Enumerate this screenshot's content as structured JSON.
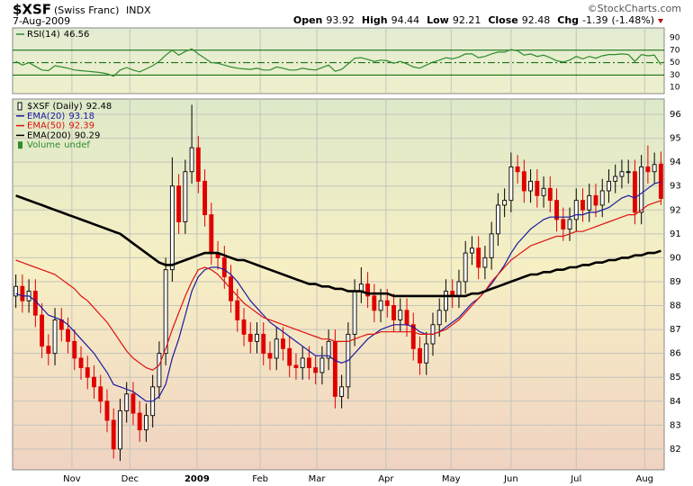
{
  "header": {
    "symbol": "$XSF",
    "name": "(Swiss Franc)",
    "exchange": "INDX",
    "date": "7-Aug-2009",
    "quote": [
      {
        "label": "Open",
        "value": 93.92
      },
      {
        "label": "High",
        "value": 94.44
      },
      {
        "label": "Low",
        "value": 92.21
      },
      {
        "label": "Close",
        "value": 92.48
      }
    ],
    "change_label": "Chg",
    "change": -1.39,
    "change_pct": "(-1.48%)",
    "credit": "©StockCharts.com"
  },
  "chart_data": [
    {
      "type": "line",
      "name": "RSI(14)",
      "last": 46.56,
      "color": "#2e8b2e",
      "level_color": "#006400",
      "ylim": [
        0,
        106
      ],
      "yticks": [
        90,
        70,
        50,
        30,
        10
      ],
      "levels": [
        70,
        50,
        30
      ],
      "values": [
        52,
        46,
        50,
        44,
        38,
        37,
        45,
        43,
        41,
        38,
        37,
        36,
        35,
        34,
        32,
        28,
        38,
        42,
        38,
        35,
        40,
        45,
        52,
        62,
        70,
        62,
        68,
        72,
        64,
        57,
        50,
        49,
        46,
        43,
        41,
        40,
        39,
        41,
        38,
        38,
        43,
        41,
        38,
        38,
        41,
        39,
        38,
        42,
        46,
        36,
        39,
        48,
        57,
        58,
        55,
        52,
        54,
        53,
        49,
        52,
        48,
        43,
        41,
        46,
        51,
        54,
        58,
        56,
        59,
        64,
        64,
        58,
        60,
        64,
        67,
        67,
        71,
        69,
        62,
        64,
        60,
        62,
        58,
        53,
        51,
        54,
        60,
        56,
        60,
        57,
        61,
        63,
        63,
        64,
        63,
        52,
        63,
        61,
        62,
        46.56
      ]
    },
    {
      "type": "candlestick",
      "name": "$XSF (Daily)",
      "last": 92.48,
      "up_color": "#000000",
      "down_color": "#e00000",
      "grid": true,
      "ylim": [
        81.13,
        96.64
      ],
      "yticks": [
        82,
        83,
        84,
        85,
        86,
        87,
        88,
        89,
        90,
        91,
        92,
        93,
        94,
        95,
        96
      ],
      "xticks": [
        {
          "value": 8.6,
          "label": "Nov"
        },
        {
          "value": 17.5,
          "label": "Dec"
        },
        {
          "value": 27.8,
          "label": "2009"
        },
        {
          "value": 37.5,
          "label": "Feb"
        },
        {
          "value": 46.2,
          "label": "Mar"
        },
        {
          "value": 56.8,
          "label": "Apr"
        },
        {
          "value": 66.8,
          "label": "May"
        },
        {
          "value": 76,
          "label": "Jun"
        },
        {
          "value": 86,
          "label": "Jul"
        },
        {
          "value": 96.5,
          "label": "Aug"
        }
      ],
      "categories": [
        null,
        null,
        null,
        null,
        null,
        null,
        null,
        null,
        null,
        null,
        null,
        null,
        null,
        null,
        null,
        null,
        null,
        null,
        null,
        null,
        null,
        null,
        null,
        null,
        null,
        null,
        null,
        null,
        null,
        null,
        null,
        null,
        null,
        null,
        null,
        null,
        null,
        null,
        null,
        null,
        null,
        null,
        null,
        null,
        null,
        null,
        null,
        null,
        null,
        null,
        null,
        null,
        null,
        null,
        null,
        null,
        null,
        null,
        null,
        null,
        null,
        null,
        null,
        null,
        null,
        null,
        null,
        null,
        null,
        null,
        null,
        null,
        null,
        null,
        null,
        null,
        null,
        null,
        null,
        null,
        null,
        null,
        null,
        null,
        null,
        null,
        null,
        null,
        null,
        null,
        null,
        null,
        null,
        null,
        null,
        null,
        null,
        null,
        null,
        null
      ],
      "ohlc": {
        "open": [
          88.4,
          88.8,
          88.2,
          88.6,
          87.6,
          86.3,
          86.0,
          87.4,
          87.0,
          86.5,
          85.8,
          85.4,
          85.0,
          84.6,
          84.0,
          83.2,
          82.0,
          83.6,
          84.3,
          83.5,
          82.8,
          83.4,
          84.6,
          86.0,
          89.5,
          93.0,
          91.5,
          93.6,
          94.6,
          93.2,
          91.8,
          90.2,
          90.0,
          89.2,
          88.2,
          87.4,
          86.8,
          86.5,
          86.8,
          86.0,
          85.8,
          86.6,
          86.2,
          85.5,
          85.4,
          85.8,
          85.4,
          85.2,
          85.8,
          86.5,
          84.2,
          84.6,
          86.8,
          88.6,
          88.9,
          88.4,
          87.8,
          88.2,
          88.0,
          87.4,
          87.8,
          87.2,
          86.2,
          85.6,
          86.4,
          87.2,
          87.8,
          88.6,
          88.4,
          89.0,
          90.2,
          90.4,
          89.6,
          90.0,
          91.0,
          92.2,
          92.4,
          93.8,
          93.6,
          92.8,
          93.2,
          92.6,
          92.9,
          92.4,
          91.6,
          91.2,
          91.6,
          92.4,
          92.0,
          92.6,
          92.2,
          92.8,
          93.2,
          93.4,
          93.6,
          93.6,
          91.9,
          93.8,
          93.6,
          93.92
        ],
        "high": [
          89.3,
          89.3,
          89.1,
          89.1,
          88.1,
          86.8,
          87.9,
          87.9,
          87.5,
          87.0,
          86.3,
          85.9,
          85.5,
          85.1,
          84.5,
          83.7,
          84.1,
          84.8,
          84.8,
          84.0,
          83.9,
          85.1,
          86.5,
          90.0,
          94.2,
          93.5,
          94.1,
          96.4,
          95.1,
          93.7,
          92.3,
          90.7,
          90.5,
          89.7,
          88.7,
          87.9,
          87.3,
          87.3,
          87.3,
          86.5,
          87.1,
          87.1,
          86.7,
          86.0,
          86.3,
          86.3,
          85.9,
          86.3,
          87.0,
          87.0,
          85.1,
          87.3,
          89.1,
          89.6,
          89.4,
          88.9,
          88.7,
          88.7,
          88.5,
          88.3,
          88.3,
          87.7,
          86.7,
          86.9,
          87.7,
          88.3,
          89.1,
          89.1,
          89.5,
          90.7,
          90.9,
          90.9,
          90.5,
          91.5,
          92.7,
          92.9,
          94.4,
          94.3,
          94.1,
          93.7,
          93.7,
          93.4,
          93.4,
          92.9,
          92.1,
          92.1,
          92.9,
          92.9,
          93.1,
          93.1,
          93.3,
          93.7,
          93.9,
          94.1,
          94.1,
          94.1,
          94.3,
          94.7,
          94.4,
          94.44
        ],
        "low": [
          87.9,
          87.7,
          87.7,
          87.1,
          85.8,
          85.5,
          85.5,
          86.5,
          86.0,
          85.3,
          84.9,
          84.5,
          84.1,
          83.5,
          82.7,
          81.6,
          81.5,
          83.1,
          83.0,
          82.3,
          82.3,
          82.9,
          84.1,
          85.5,
          89.0,
          91.0,
          91.0,
          93.1,
          92.7,
          91.3,
          89.7,
          89.5,
          88.7,
          87.7,
          86.9,
          86.3,
          86.0,
          86.0,
          85.5,
          85.3,
          85.3,
          85.7,
          85.0,
          84.9,
          84.9,
          84.9,
          84.7,
          84.7,
          85.3,
          83.7,
          83.7,
          84.1,
          86.3,
          88.1,
          87.9,
          87.3,
          87.3,
          87.5,
          86.9,
          86.9,
          86.7,
          85.7,
          85.1,
          85.1,
          85.9,
          86.7,
          87.3,
          87.9,
          87.9,
          88.5,
          89.7,
          89.1,
          89.1,
          89.5,
          90.5,
          91.7,
          91.9,
          93.1,
          92.3,
          92.3,
          92.1,
          92.1,
          91.9,
          91.1,
          90.7,
          90.7,
          91.1,
          91.5,
          91.5,
          91.7,
          91.7,
          92.3,
          92.7,
          92.9,
          93.1,
          91.4,
          91.4,
          93.1,
          93.1,
          92.21
        ],
        "close": [
          88.8,
          88.2,
          88.6,
          87.6,
          86.3,
          86.0,
          87.4,
          87.0,
          86.5,
          85.8,
          85.4,
          85.0,
          84.6,
          84.0,
          83.2,
          82.0,
          83.6,
          84.3,
          83.5,
          82.8,
          83.4,
          84.6,
          86.0,
          89.5,
          93.0,
          91.5,
          93.6,
          94.6,
          93.2,
          91.8,
          90.2,
          90.0,
          89.2,
          88.2,
          87.4,
          86.8,
          86.5,
          86.8,
          86.0,
          85.8,
          86.6,
          86.2,
          85.5,
          85.4,
          85.8,
          85.4,
          85.2,
          85.8,
          86.5,
          84.2,
          84.6,
          86.8,
          88.6,
          88.9,
          88.4,
          87.8,
          88.2,
          88.0,
          87.4,
          87.8,
          87.2,
          86.2,
          85.6,
          86.4,
          87.2,
          87.8,
          88.6,
          88.4,
          89.0,
          90.2,
          90.4,
          89.6,
          90.0,
          91.0,
          92.2,
          92.4,
          93.8,
          93.6,
          92.8,
          93.2,
          92.6,
          92.9,
          92.4,
          91.6,
          91.2,
          91.6,
          92.4,
          92.0,
          92.6,
          92.2,
          92.8,
          93.2,
          93.4,
          93.6,
          93.6,
          91.9,
          93.8,
          93.6,
          93.9,
          92.48
        ]
      },
      "series": [
        {
          "name": "EMA(20)",
          "last": 93.18,
          "color": "#1a1aa0",
          "width": 1.2,
          "values": [
            88.5,
            88.4,
            88.4,
            88.2,
            87.9,
            87.6,
            87.5,
            87.4,
            87.2,
            86.9,
            86.6,
            86.3,
            86.0,
            85.6,
            85.2,
            84.7,
            84.6,
            84.5,
            84.4,
            84.2,
            84.0,
            84.0,
            84.2,
            84.7,
            85.8,
            86.6,
            87.6,
            88.6,
            89.2,
            89.5,
            89.6,
            89.6,
            89.5,
            89.3,
            89.0,
            88.6,
            88.2,
            87.9,
            87.6,
            87.3,
            87.1,
            86.9,
            86.7,
            86.5,
            86.3,
            86.1,
            85.9,
            85.9,
            85.9,
            85.7,
            85.6,
            85.7,
            86.0,
            86.3,
            86.6,
            86.8,
            87.0,
            87.1,
            87.2,
            87.2,
            87.2,
            87.1,
            86.9,
            86.8,
            86.8,
            86.9,
            87.1,
            87.3,
            87.5,
            87.8,
            88.1,
            88.3,
            88.6,
            88.9,
            89.3,
            89.7,
            90.2,
            90.6,
            90.9,
            91.2,
            91.4,
            91.6,
            91.7,
            91.7,
            91.7,
            91.7,
            91.8,
            91.8,
            91.9,
            91.9,
            92.0,
            92.1,
            92.3,
            92.5,
            92.6,
            92.5,
            92.7,
            92.9,
            93.1,
            93.18
          ]
        },
        {
          "name": "EMA(50)",
          "last": 92.39,
          "color": "#e01010",
          "width": 1.2,
          "values": [
            89.9,
            89.8,
            89.7,
            89.6,
            89.5,
            89.4,
            89.3,
            89.1,
            88.9,
            88.7,
            88.4,
            88.2,
            87.9,
            87.6,
            87.3,
            86.9,
            86.5,
            86.1,
            85.8,
            85.6,
            85.4,
            85.3,
            85.5,
            86.2,
            87.0,
            87.7,
            88.4,
            89.0,
            89.5,
            89.6,
            89.5,
            89.3,
            89.0,
            88.7,
            88.4,
            88.1,
            87.9,
            87.7,
            87.5,
            87.4,
            87.3,
            87.2,
            87.1,
            87.0,
            86.9,
            86.8,
            86.7,
            86.6,
            86.6,
            86.5,
            86.5,
            86.5,
            86.6,
            86.7,
            86.8,
            86.8,
            86.9,
            86.9,
            86.9,
            86.9,
            86.9,
            86.9,
            86.8,
            86.8,
            86.8,
            86.9,
            87.0,
            87.2,
            87.4,
            87.7,
            88.0,
            88.3,
            88.6,
            89.0,
            89.3,
            89.6,
            89.9,
            90.1,
            90.3,
            90.5,
            90.6,
            90.7,
            90.8,
            90.9,
            90.9,
            91.0,
            91.1,
            91.1,
            91.2,
            91.3,
            91.4,
            91.5,
            91.6,
            91.7,
            91.8,
            91.8,
            92.0,
            92.2,
            92.3,
            92.39
          ]
        },
        {
          "name": "EMA(200)",
          "last": 90.29,
          "color": "#000000",
          "width": 2.6,
          "values": [
            92.6,
            92.5,
            92.4,
            92.3,
            92.2,
            92.1,
            92.0,
            91.9,
            91.8,
            91.7,
            91.6,
            91.5,
            91.4,
            91.3,
            91.2,
            91.1,
            91.0,
            90.8,
            90.6,
            90.4,
            90.2,
            90.0,
            89.8,
            89.7,
            89.7,
            89.8,
            89.9,
            90.0,
            90.1,
            90.2,
            90.2,
            90.2,
            90.1,
            90.0,
            89.9,
            89.9,
            89.8,
            89.7,
            89.6,
            89.5,
            89.4,
            89.3,
            89.2,
            89.1,
            89.0,
            88.9,
            88.9,
            88.8,
            88.8,
            88.7,
            88.7,
            88.6,
            88.6,
            88.6,
            88.5,
            88.5,
            88.5,
            88.5,
            88.4,
            88.4,
            88.4,
            88.4,
            88.4,
            88.4,
            88.4,
            88.4,
            88.4,
            88.4,
            88.4,
            88.4,
            88.5,
            88.5,
            88.6,
            88.7,
            88.8,
            88.9,
            89.0,
            89.1,
            89.2,
            89.3,
            89.3,
            89.4,
            89.4,
            89.5,
            89.5,
            89.6,
            89.6,
            89.7,
            89.7,
            89.8,
            89.8,
            89.9,
            89.9,
            90.0,
            90.0,
            90.1,
            90.1,
            90.2,
            90.2,
            90.29
          ]
        }
      ],
      "volume": {
        "name": "Volume",
        "value": "undef",
        "color": "#2e8b2e"
      }
    }
  ]
}
